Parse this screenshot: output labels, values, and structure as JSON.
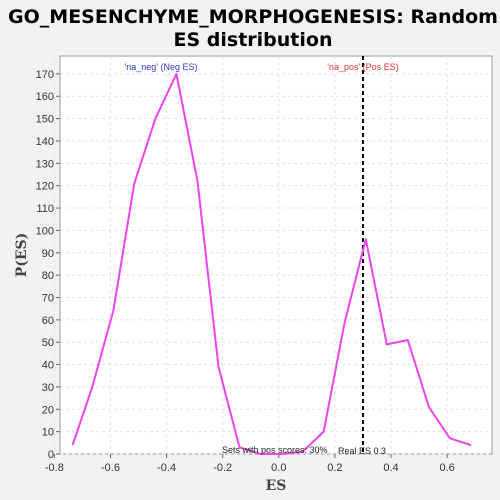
{
  "chart_data": {
    "type": "line",
    "title_line1": "GO_MESENCHYME_MORPHOGENESIS: Random",
    "title_line2": "ES distribution",
    "xlabel": "ES",
    "ylabel": "P(ES)",
    "xlim": [
      -0.78,
      0.76
    ],
    "ylim": [
      0,
      178
    ],
    "xticks": [
      -0.8,
      -0.6,
      -0.4,
      -0.2,
      0.0,
      0.2,
      0.4,
      0.6
    ],
    "xtick_labels": [
      "-0.8",
      "-0.6",
      "-0.4",
      "-0.2",
      "0.0",
      "0.2",
      "0.4",
      "0.6"
    ],
    "yticks": [
      0,
      10,
      20,
      30,
      40,
      50,
      60,
      70,
      80,
      90,
      100,
      110,
      120,
      130,
      140,
      150,
      160,
      170
    ],
    "ytick_labels": [
      "0",
      "10",
      "20",
      "30",
      "40",
      "50",
      "60",
      "70",
      "80",
      "90",
      "100",
      "110",
      "120",
      "130",
      "140",
      "150",
      "160",
      "170"
    ],
    "grid": true,
    "series": [
      {
        "color": "#ee44ee",
        "x": [
          -0.735,
          -0.665,
          -0.59,
          -0.515,
          -0.44,
          -0.365,
          -0.29,
          -0.215,
          -0.14,
          -0.065,
          0.01,
          0.085,
          0.16,
          0.235,
          0.31,
          0.385,
          0.46,
          0.535,
          0.61,
          0.685
        ],
        "y": [
          4,
          30,
          64,
          121,
          150,
          170,
          122,
          39,
          3,
          0,
          0,
          1,
          10,
          59,
          96,
          49,
          51,
          21,
          7,
          4
        ]
      }
    ],
    "real_es": 0.3,
    "real_es_color": "#000000",
    "neg_label": "'na_neg' (Neg ES)",
    "neg_label_color": "#3333cc",
    "pos_label": "'na_pos' (Pos ES)",
    "pos_label_color": "#dd3333",
    "sets_label": "Sets with pos scores: 30%",
    "real_es_label": "Real ES 0.3"
  }
}
